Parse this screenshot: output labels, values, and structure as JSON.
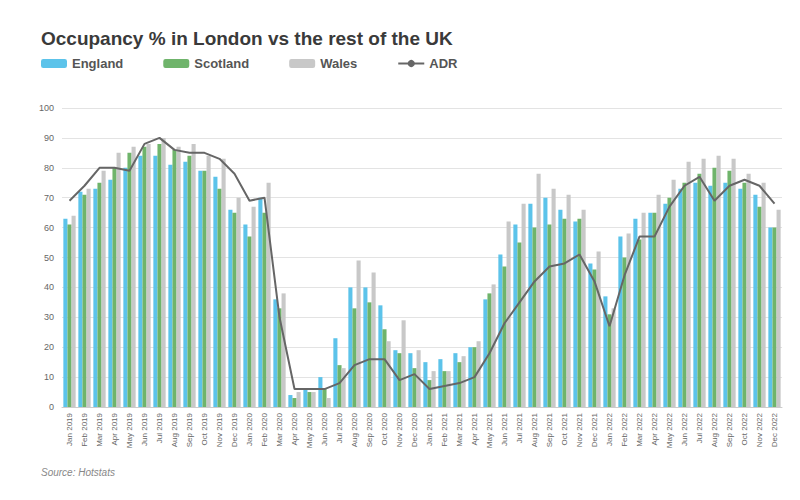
{
  "chart_data": {
    "type": "bar",
    "title": "Occupancy % in London vs the rest of the UK",
    "source": "Source: Hotstats",
    "categories": [
      "Jan 2019",
      "Feb 2019",
      "Mar 2019",
      "Apr 2019",
      "May 2019",
      "Jun 2019",
      "Jul 2019",
      "Aug 2019",
      "Sep 2019",
      "Oct 2019",
      "Nov 2019",
      "Dec 2019",
      "Jan 2020",
      "Feb 2020",
      "Mar 2020",
      "Apr 2020",
      "May 2020",
      "Jun 2020",
      "Jul 2020",
      "Aug 2020",
      "Sep 2020",
      "Oct 2020",
      "Nov 2020",
      "Dec 2020",
      "Jan 2021",
      "Feb 2021",
      "Mar 2021",
      "Apr 2021",
      "May 2021",
      "Jun 2021",
      "Jul 2021",
      "Aug 2021",
      "Sep 2021",
      "Oct 2021",
      "Nov 2021",
      "Dec 2021",
      "Jan 2022",
      "Feb 2022",
      "Mar 2022",
      "Apr 2022",
      "May 2022",
      "Jun 2022",
      "Jul 2022",
      "Aug 2022",
      "Sep 2022",
      "Oct 2022",
      "Nov 2022",
      "Dec 2022"
    ],
    "series": [
      {
        "name": "England",
        "color": "#5cc3ea",
        "type": "bar",
        "values": [
          63,
          72,
          73,
          76,
          80,
          84,
          84,
          81,
          82,
          79,
          77,
          66,
          61,
          70,
          36,
          4,
          6,
          10,
          23,
          40,
          40,
          34,
          19,
          18,
          15,
          16,
          18,
          20,
          36,
          51,
          61,
          68,
          70,
          66,
          62,
          48,
          37,
          57,
          63,
          65,
          68,
          73,
          75,
          74,
          75,
          73,
          71,
          60
        ]
      },
      {
        "name": "Scotland",
        "color": "#6fb46b",
        "type": "bar",
        "values": [
          61,
          71,
          75,
          80,
          85,
          87,
          88,
          86,
          84,
          79,
          73,
          65,
          57,
          65,
          33,
          3,
          5,
          6,
          14,
          33,
          35,
          26,
          18,
          13,
          9,
          12,
          15,
          20,
          38,
          47,
          55,
          60,
          61,
          63,
          63,
          46,
          31,
          50,
          56,
          65,
          70,
          75,
          78,
          80,
          79,
          75,
          67,
          60
        ]
      },
      {
        "name": "Wales",
        "color": "#c8c8c8",
        "type": "bar",
        "values": [
          64,
          73,
          79,
          85,
          87,
          88,
          90,
          87,
          88,
          84,
          83,
          70,
          67,
          75,
          38,
          5,
          5,
          3,
          13,
          49,
          45,
          22,
          29,
          19,
          12,
          12,
          17,
          22,
          41,
          62,
          68,
          78,
          73,
          71,
          66,
          52,
          33,
          58,
          65,
          71,
          76,
          82,
          83,
          84,
          83,
          78,
          75,
          66
        ]
      },
      {
        "name": "ADR",
        "color": "#666666",
        "type": "line",
        "values": [
          69,
          74,
          80,
          80,
          79,
          88,
          90,
          86,
          85,
          85,
          83,
          78,
          69,
          70,
          30,
          6,
          6,
          6,
          8,
          14,
          16,
          16,
          9,
          11,
          6,
          7,
          8,
          10,
          18,
          28,
          35,
          42,
          47,
          48,
          51,
          42,
          27,
          44,
          57,
          57,
          67,
          74,
          77,
          69,
          74,
          76,
          74,
          68
        ]
      }
    ],
    "ylim": [
      0,
      100
    ],
    "yticks": [
      0,
      10,
      20,
      30,
      40,
      50,
      60,
      70,
      80,
      90,
      100
    ],
    "grid": true,
    "legend": "top-left"
  }
}
